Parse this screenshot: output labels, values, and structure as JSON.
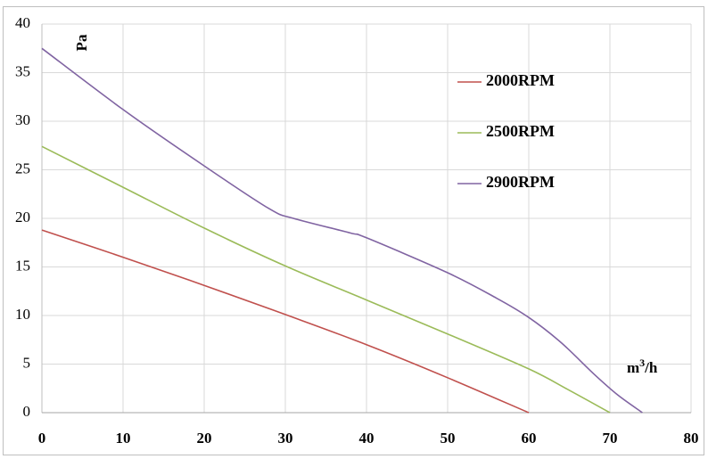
{
  "chart_data": {
    "type": "line",
    "ylabel": "Pa",
    "xlabel_prefix": "m",
    "xlabel_sup": "3",
    "xlabel_suffix": "/h",
    "xlim": [
      0,
      80
    ],
    "ylim": [
      0,
      40
    ],
    "x_ticks": [
      "0",
      "10",
      "20",
      "30",
      "40",
      "50",
      "60",
      "70",
      "80"
    ],
    "y_ticks": [
      "0",
      "5",
      "10",
      "15",
      "20",
      "25",
      "30",
      "35",
      "40"
    ],
    "grid": true,
    "legend_position": "top-right",
    "series": [
      {
        "name": "2000RPM",
        "color": "#c0504d",
        "points": [
          [
            0,
            18.8
          ],
          [
            10,
            16.0
          ],
          [
            20,
            13.1
          ],
          [
            30,
            10.1
          ],
          [
            40,
            7.0
          ],
          [
            50,
            3.6
          ],
          [
            60,
            0
          ]
        ]
      },
      {
        "name": "2500RPM",
        "color": "#9bbb59",
        "points": [
          [
            0,
            27.4
          ],
          [
            10,
            23.2
          ],
          [
            20,
            19.0
          ],
          [
            30,
            15.1
          ],
          [
            40,
            11.6
          ],
          [
            50,
            8.1
          ],
          [
            60,
            4.5
          ],
          [
            65,
            2.3
          ],
          [
            70,
            0
          ]
        ]
      },
      {
        "name": "2900RPM",
        "color": "#8064a2",
        "points": [
          [
            0,
            37.5
          ],
          [
            10,
            31.2
          ],
          [
            20,
            25.4
          ],
          [
            28,
            21.0
          ],
          [
            31,
            20.0
          ],
          [
            38,
            18.5
          ],
          [
            40,
            18.0
          ],
          [
            50,
            14.4
          ],
          [
            56,
            11.8
          ],
          [
            60,
            9.8
          ],
          [
            64,
            7.2
          ],
          [
            68,
            4.0
          ],
          [
            71,
            1.8
          ],
          [
            74,
            0
          ]
        ]
      }
    ]
  }
}
